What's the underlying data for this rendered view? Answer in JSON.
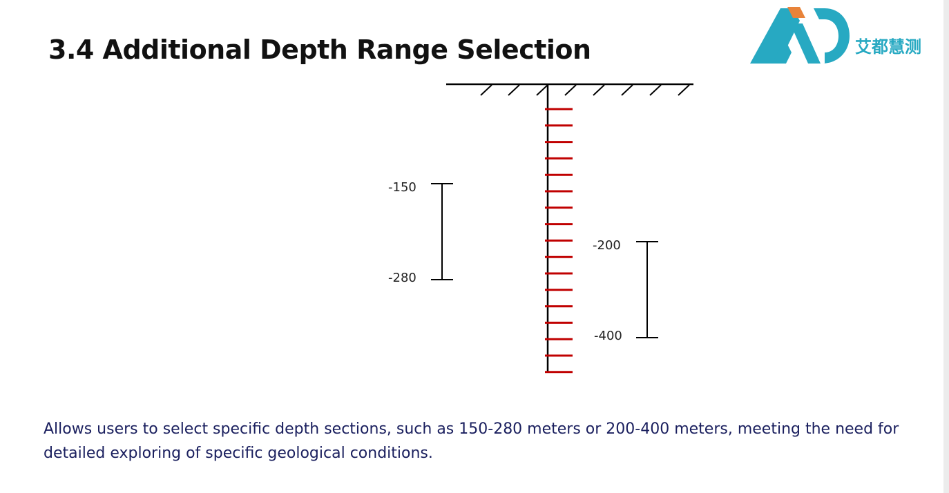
{
  "slide": {
    "title": "3.4 Additional Depth Range Selection",
    "description": "Allows users to select specific depth sections, such as 150-280 meters or 200-400 meters, meeting the need for detailed exploring of specific geological conditions."
  },
  "logo": {
    "mark": "AiD",
    "brand_text": "艾都慧测",
    "colors": {
      "teal": "#27a9c2",
      "orange": "#e8833a"
    }
  },
  "diagram": {
    "colors": {
      "borehole_ticks": "#c00000",
      "lines": "#000000"
    },
    "ranges": [
      {
        "top_label": "-150",
        "bottom_label": "-280"
      },
      {
        "top_label": "-200",
        "bottom_label": "-400"
      }
    ]
  }
}
